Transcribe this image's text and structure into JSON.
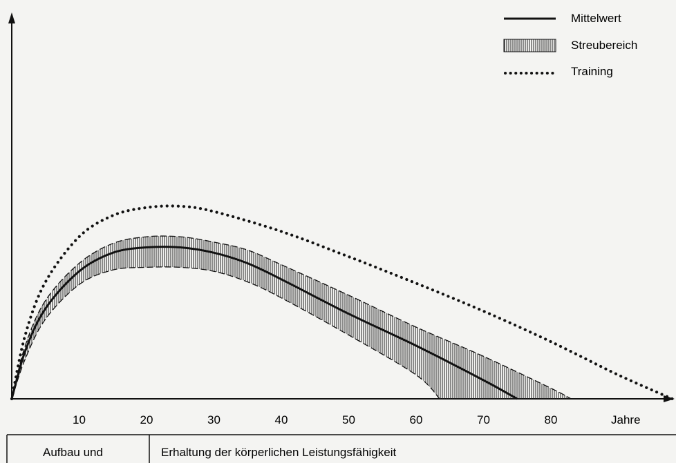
{
  "chart_data": {
    "type": "line",
    "title": "",
    "xlabel": "Jahre",
    "ylabel": "",
    "xlim": [
      0,
      98
    ],
    "ylim": [
      0,
      100
    ],
    "x_ticks": [
      10,
      20,
      30,
      40,
      50,
      60,
      70,
      80
    ],
    "grid": false,
    "legend_position": "top-right",
    "legend": [
      {
        "name": "Mittelwert",
        "style": "solid"
      },
      {
        "name": "Streubereich",
        "style": "hatched"
      },
      {
        "name": "Training",
        "style": "dotted"
      }
    ],
    "series": [
      {
        "name": "Mittelwert",
        "x": [
          0,
          2,
          5,
          10,
          15,
          20,
          25,
          30,
          35,
          40,
          50,
          60,
          70,
          75
        ],
        "y": [
          0,
          18,
          34,
          48,
          55,
          57,
          57,
          55,
          51,
          45,
          32,
          20,
          7,
          0
        ]
      },
      {
        "name": "Streubereich",
        "x": [
          0,
          2,
          5,
          10,
          15,
          20,
          25,
          30,
          35,
          40,
          50,
          60,
          70,
          80,
          83
        ],
        "y_upper": [
          0,
          20,
          37,
          51,
          58.5,
          61,
          61,
          59,
          56,
          50.5,
          39,
          27,
          16,
          4,
          0
        ],
        "y_lower": [
          0,
          15,
          30,
          43,
          48.5,
          49.5,
          49.5,
          48,
          44,
          38,
          24,
          9,
          null,
          null,
          null
        ],
        "lower_end_x": 63.5
      },
      {
        "name": "Training",
        "x": [
          0,
          2,
          5,
          10,
          15,
          20,
          25,
          30,
          40,
          50,
          60,
          70,
          80,
          90,
          98
        ],
        "y": [
          0,
          24,
          44,
          61,
          69,
          72,
          72.5,
          70.5,
          63,
          53.5,
          43.5,
          33,
          21.5,
          9,
          0
        ]
      }
    ]
  },
  "footer": {
    "left_label": "Aufbau und",
    "right_label": "Erhaltung der körperlichen Leistungsfähigkeit"
  }
}
